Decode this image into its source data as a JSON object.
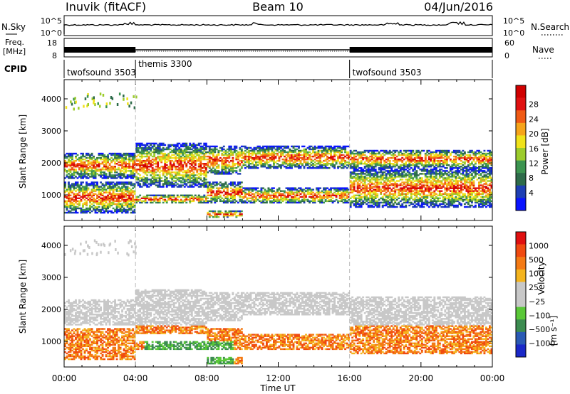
{
  "header": {
    "station": "Inuvik (fitACF)",
    "beam": "Beam 10",
    "date": "04/Jun/2016"
  },
  "panels": {
    "nsky": {
      "label": "N.Sky",
      "ticks": [
        "10^5",
        "10^0"
      ],
      "right_label": "N.Search",
      "right_ticks": [
        "10^5",
        "10^0"
      ]
    },
    "freq": {
      "label_line1": "Freq.",
      "label_line2": "[MHz]",
      "ticks": [
        "18",
        "8"
      ],
      "right_label": "Nave",
      "right_ticks": [
        "60",
        "0"
      ]
    },
    "cpid": {
      "label": "CPID",
      "segments": [
        {
          "name": "twofsound 3503",
          "start_h": 0,
          "end_h": 4
        },
        {
          "name": "themis 3300",
          "start_h": 4,
          "end_h": 16
        },
        {
          "name": "twofsound 3503",
          "start_h": 16,
          "end_h": 24
        }
      ]
    }
  },
  "chart_data": [
    {
      "type": "heatmap",
      "title": "",
      "xlabel": "",
      "ylabel": "Slant Range [km]",
      "x_range_h": [
        0,
        24
      ],
      "ylim": [
        200,
        4600
      ],
      "y_ticks": [
        1000,
        2000,
        3000,
        4000
      ],
      "quantity": "Power [dB]",
      "colorbar": {
        "label": "Power [dB]",
        "ticks": [
          "4",
          "8",
          "12",
          "16",
          "20",
          "24",
          "28"
        ],
        "colors": [
          "#0a14ff",
          "#1e3fb4",
          "#2e6b4a",
          "#3c9450",
          "#9ccc2c",
          "#f0e21a",
          "#f6a41a",
          "#f05a14",
          "#e01010",
          "#d00000"
        ]
      },
      "echo_bands": [
        {
          "from_h": 0,
          "to_h": 4,
          "ranges_km": [
            [
              400,
              1400
            ],
            [
              1500,
              2300
            ]
          ]
        },
        {
          "from_h": 4,
          "to_h": 8,
          "ranges_km": [
            [
              700,
              1000
            ],
            [
              1200,
              2600
            ]
          ]
        },
        {
          "from_h": 8,
          "to_h": 10,
          "ranges_km": [
            [
              250,
              500
            ],
            [
              700,
              1400
            ],
            [
              1600,
              2500
            ]
          ]
        },
        {
          "from_h": 10,
          "to_h": 16,
          "ranges_km": [
            [
              700,
              1200
            ],
            [
              1800,
              2500
            ]
          ]
        },
        {
          "from_h": 16,
          "to_h": 24,
          "ranges_km": [
            [
              600,
              1800
            ],
            [
              1800,
              2400
            ]
          ]
        }
      ]
    },
    {
      "type": "heatmap",
      "title": "",
      "xlabel": "Time UT",
      "ylabel": "Slant Range [km]",
      "x_range_h": [
        0,
        24
      ],
      "ylim": [
        200,
        4600
      ],
      "y_ticks": [
        1000,
        2000,
        3000,
        4000
      ],
      "quantity": "Velocity [m s^-1]",
      "colorbar": {
        "label": "Velocity",
        "units": "[m s⁻¹]",
        "ticks": [
          "1000",
          "500",
          "100",
          "25",
          "−25",
          "−100",
          "−500",
          "−1000"
        ],
        "colors": [
          "#1a28c8",
          "#2a5ab4",
          "#3c8c50",
          "#5ac838",
          "#c8c8c8",
          "#c8c8c8",
          "#f4b41e",
          "#f47a14",
          "#f04a10",
          "#e01010"
        ]
      },
      "x_tick_labels": [
        "00:00",
        "04:00",
        "08:00",
        "12:00",
        "16:00",
        "20:00",
        "00:00"
      ]
    }
  ]
}
